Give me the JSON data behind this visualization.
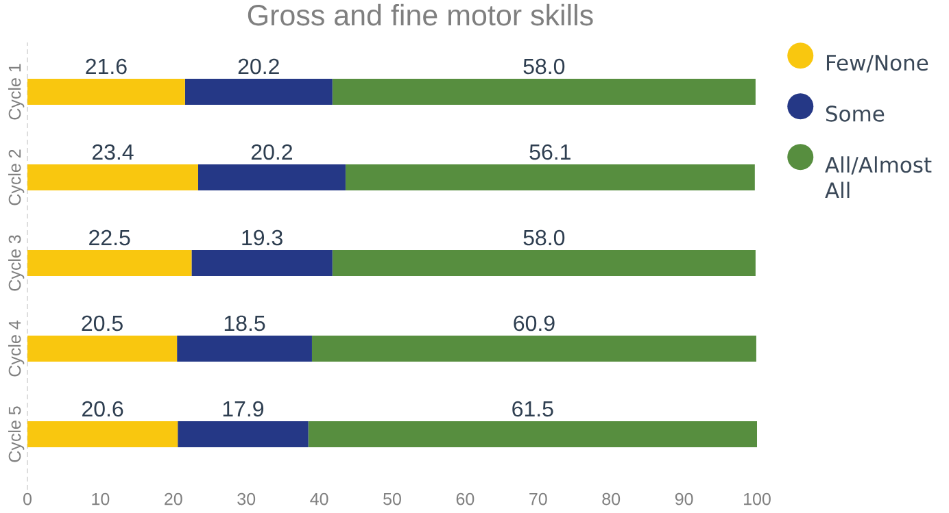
{
  "chart_data": {
    "type": "bar",
    "orientation": "horizontal",
    "stacked": true,
    "title": "Gross and fine motor skills",
    "categories": [
      "Cycle 1",
      "Cycle 2",
      "Cycle 3",
      "Cycle 4",
      "Cycle 5"
    ],
    "series": [
      {
        "name": "Few/None",
        "color": "#f9c70f",
        "values": [
          21.6,
          23.4,
          22.5,
          20.5,
          20.6
        ],
        "value_labels": [
          "21.6",
          "23.4",
          "22.5",
          "20.5",
          "20.6"
        ]
      },
      {
        "name": "Some",
        "color": "#253886",
        "values": [
          20.2,
          20.2,
          19.3,
          18.5,
          17.9
        ],
        "value_labels": [
          "20.2",
          "20.2",
          "19.3",
          "18.5",
          "17.9"
        ]
      },
      {
        "name": "All/Almost All",
        "color": "#578e3f",
        "values": [
          58.0,
          56.1,
          58.0,
          60.9,
          61.5
        ],
        "value_labels": [
          "58.0",
          "56.1",
          "58.0",
          "60.9",
          "61.5"
        ]
      }
    ],
    "xlim": [
      0,
      100
    ],
    "xticks": [
      0,
      10,
      20,
      30,
      40,
      50,
      60,
      70,
      80,
      90,
      100
    ],
    "legend": "right"
  }
}
